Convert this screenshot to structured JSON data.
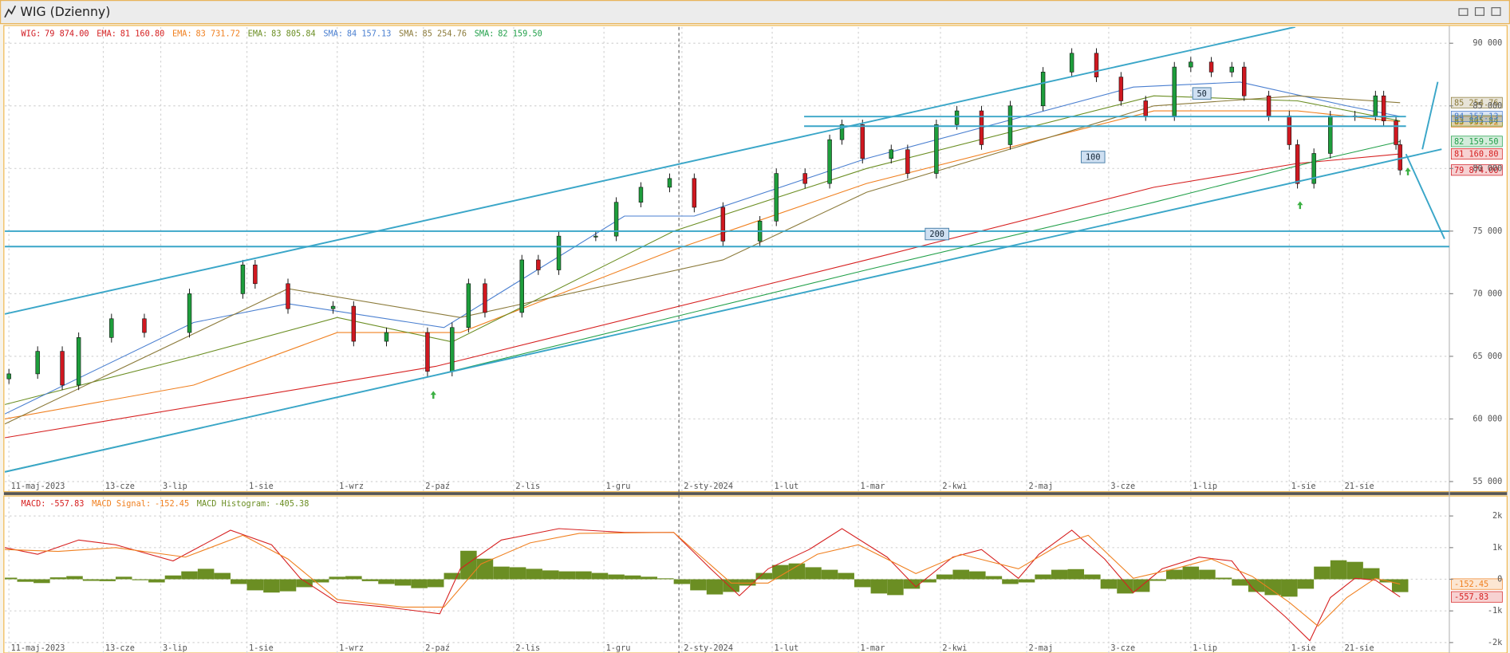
{
  "chart_data": [
    {
      "type": "candlestick",
      "title": "WIG (Dzienny)",
      "name": "WIG:",
      "last_value_label": "79 874.00",
      "up_color": "#1e9e3c",
      "down_color": "#d01820",
      "x": [
        -7,
        0,
        6,
        10,
        18,
        26,
        37,
        50,
        53,
        61,
        72,
        77,
        85,
        95,
        101,
        105,
        109,
        118,
        122,
        127,
        136,
        141,
        147,
        154,
        160,
        167,
        176,
        180,
        187,
        193,
        196,
        201,
        208,
        212,
        219,
        224,
        230,
        237,
        245,
        252,
        258,
        264,
        270,
        277,
        281,
        286,
        291,
        294,
        300,
        305,
        307,
        311,
        315,
        321,
        326,
        328,
        331,
        332
      ],
      "open": [
        63200,
        63600,
        65400,
        62700,
        66500,
        68000,
        66900,
        70000,
        72300,
        70800,
        68800,
        69000,
        66200,
        66900,
        63800,
        67300,
        70800,
        68500,
        72700,
        71900,
        74600,
        74600,
        77300,
        78500,
        79200,
        76900,
        74200,
        75800,
        79600,
        78800,
        82300,
        83500,
        80800,
        81500,
        79600,
        83500,
        84600,
        81900,
        85000,
        87700,
        89200,
        87300,
        85400,
        84200,
        88100,
        88500,
        87700,
        88100,
        85800,
        84200,
        81900,
        78800,
        81200,
        84200,
        84200,
        85800,
        83800,
        81900
      ],
      "high": [
        64000,
        65800,
        65800,
        66900,
        68400,
        68400,
        70400,
        72700,
        72700,
        71200,
        69400,
        69400,
        67300,
        67300,
        67700,
        71200,
        71200,
        73100,
        73100,
        75000,
        75000,
        77700,
        78900,
        79600,
        79600,
        77300,
        76200,
        80000,
        80000,
        82700,
        83900,
        83900,
        81900,
        81900,
        83900,
        85000,
        85000,
        85400,
        88100,
        89600,
        89600,
        87700,
        85800,
        88500,
        88900,
        88900,
        88500,
        88500,
        86200,
        84600,
        82300,
        81600,
        84600,
        84600,
        86200,
        86200,
        84200,
        82300
      ],
      "low": [
        62800,
        63200,
        62300,
        62300,
        66100,
        66500,
        66500,
        69600,
        70400,
        68400,
        68400,
        65800,
        65800,
        63400,
        63400,
        66900,
        68100,
        68100,
        71500,
        71500,
        74200,
        74200,
        76900,
        78100,
        76500,
        73800,
        73800,
        75400,
        78400,
        78400,
        81900,
        80400,
        80400,
        79200,
        79200,
        83100,
        81500,
        81500,
        84600,
        87300,
        86900,
        85000,
        83800,
        83800,
        87700,
        87300,
        87300,
        85400,
        83800,
        81500,
        78400,
        78400,
        80800,
        83800,
        83800,
        83400,
        81500,
        79474
      ],
      "close": [
        63600,
        65400,
        62700,
        66500,
        68000,
        66900,
        70000,
        72300,
        70800,
        68800,
        69000,
        66200,
        66900,
        63800,
        67300,
        70800,
        68500,
        72700,
        71900,
        74600,
        74600,
        77300,
        78500,
        79200,
        76900,
        74200,
        75800,
        79600,
        78800,
        82300,
        83500,
        80800,
        81500,
        79600,
        83500,
        84600,
        81900,
        85000,
        87700,
        89200,
        87300,
        85400,
        84200,
        88100,
        88500,
        87700,
        88100,
        85800,
        84200,
        81900,
        78800,
        81200,
        84200,
        84200,
        85800,
        83800,
        81900,
        79874
      ],
      "overlays": [
        {
          "name": "EMA:",
          "color": "#d62020",
          "last_value_label": "81 160.80",
          "x": [
            -8,
            97,
            202,
            272,
            307,
            332
          ],
          "values": [
            58500,
            64200,
            72700,
            78500,
            80400,
            81160.8
          ]
        },
        {
          "name": "EMA:",
          "color": "#f08020",
          "last_value_label": "83 731.72",
          "x": [
            -8,
            38,
            73,
            103,
            155,
            202,
            272,
            307,
            332
          ],
          "values": [
            60000,
            62700,
            66900,
            66900,
            73500,
            78800,
            84600,
            84600,
            83731.72
          ]
        },
        {
          "name": "EMA:",
          "color": "#6b8e23",
          "last_value_label": "83 805.84",
          "x": [
            -8,
            38,
            73,
            101,
            155,
            202,
            272,
            307,
            332
          ],
          "values": [
            61150,
            65000,
            68100,
            66150,
            75000,
            80000,
            85800,
            85400,
            83805.84
          ]
        },
        {
          "name": "SMA:",
          "color": "#4a7fd0",
          "last_value_label": "84 157.13",
          "x": [
            -8,
            38,
            61,
            99,
            143,
            160,
            202,
            267,
            293,
            319,
            332
          ],
          "values": [
            60400,
            67700,
            69200,
            67300,
            76200,
            76200,
            80800,
            86500,
            86900,
            85000,
            84157.13
          ]
        },
        {
          "name": "SMA:",
          "color": "#8b7a3a",
          "last_value_label": "85 254.76",
          "x": [
            -8,
            61,
            103,
            167,
            202,
            272,
            307,
            332
          ],
          "values": [
            59600,
            70400,
            68100,
            72700,
            78100,
            85000,
            85800,
            85254.76
          ]
        },
        {
          "name": "SMA:",
          "color": "#22a04a",
          "last_value_label": "82 159.50",
          "x": [
            -8,
            97,
            202,
            272,
            314,
            332
          ],
          "values": [
            55800,
            63500,
            71900,
            77300,
            80800,
            82159.5
          ]
        }
      ],
      "annotations": [
        "50",
        "100",
        "200"
      ],
      "xlim": [
        -8,
        344
      ],
      "xticks": [
        {
          "value": -7,
          "label": "11-maj-2023"
        },
        {
          "value": 16,
          "label": "13-cze"
        },
        {
          "value": 30,
          "label": "3-lip"
        },
        {
          "value": 51,
          "label": "1-sie"
        },
        {
          "value": 73,
          "label": "1-wrz"
        },
        {
          "value": 94,
          "label": "2-paź"
        },
        {
          "value": 116,
          "label": "2-lis"
        },
        {
          "value": 138,
          "label": "1-gru"
        },
        {
          "value": 157,
          "label": "2-sty-2024"
        },
        {
          "value": 179,
          "label": "1-lut"
        },
        {
          "value": 200,
          "label": "1-mar"
        },
        {
          "value": 220,
          "label": "2-kwi"
        },
        {
          "value": 241,
          "label": "2-maj"
        },
        {
          "value": 261,
          "label": "3-cze"
        },
        {
          "value": 281,
          "label": "1-lip"
        },
        {
          "value": 305,
          "label": "1-sie"
        },
        {
          "value": 318,
          "label": "21-sie"
        }
      ],
      "ylim": [
        54230,
        91300
      ],
      "yticks": [
        {
          "value": 55000,
          "label": "55 000"
        },
        {
          "value": 60000,
          "label": "60 000"
        },
        {
          "value": 65000,
          "label": "65 000"
        },
        {
          "value": 70000,
          "label": "70 000"
        },
        {
          "value": 75000,
          "label": "75 000"
        },
        {
          "value": 80000,
          "label": "80 000"
        },
        {
          "value": 85000,
          "label": "85 000"
        },
        {
          "value": 90000,
          "label": "90 000"
        }
      ],
      "grid": true
    },
    {
      "type": "macd",
      "series": [
        {
          "name": "MACD:",
          "color": "#d62020",
          "last_value_label": "-557.83",
          "x": [
            -8,
            0,
            10,
            19,
            33,
            47,
            57,
            64,
            73,
            85,
            98,
            103,
            113,
            127,
            143,
            155,
            164,
            171,
            178,
            188,
            196,
            207,
            214,
            223,
            230,
            239,
            244,
            252,
            260,
            267,
            274,
            283,
            291,
            296,
            304,
            310,
            315,
            321,
            326,
            332
          ],
          "values": [
            1000,
            790,
            1240,
            1090,
            580,
            1550,
            1090,
            30,
            -730,
            -880,
            -1090,
            330,
            1240,
            1600,
            1480,
            1480,
            330,
            -520,
            330,
            940,
            1600,
            700,
            -240,
            700,
            940,
            30,
            790,
            1550,
            640,
            -420,
            330,
            700,
            580,
            -270,
            -1180,
            -1940,
            -580,
            30,
            -30,
            -557.83
          ]
        },
        {
          "name": "MACD Signal:",
          "color": "#f08020",
          "last_value_label": "-152.45",
          "x": [
            -8,
            5,
            19,
            36,
            50,
            61,
            73,
            89,
            99,
            108,
            120,
            132,
            155,
            169,
            178,
            190,
            200,
            214,
            225,
            239,
            249,
            256,
            267,
            277,
            286,
            296,
            305,
            312,
            319,
            326,
            332
          ],
          "values": [
            940,
            880,
            1000,
            700,
            1390,
            640,
            -640,
            -880,
            -880,
            480,
            1150,
            1450,
            1480,
            -120,
            -120,
            790,
            1090,
            180,
            790,
            330,
            1090,
            1390,
            30,
            330,
            640,
            90,
            -730,
            -1480,
            -580,
            30,
            -152.45
          ]
        }
      ],
      "histogram": {
        "name": "MACD Histogram:",
        "color": "#6b8e23",
        "last_value_label": "-405.38",
        "x": [
          -7,
          -3,
          1,
          5,
          9,
          13,
          17,
          21,
          25,
          29,
          33,
          37,
          41,
          45,
          49,
          53,
          57,
          61,
          65,
          69,
          73,
          77,
          81,
          85,
          89,
          93,
          97,
          101,
          105,
          109,
          113,
          117,
          121,
          125,
          129,
          133,
          137,
          141,
          145,
          149,
          153,
          157,
          161,
          165,
          169,
          173,
          177,
          181,
          185,
          189,
          193,
          197,
          201,
          205,
          209,
          213,
          217,
          221,
          225,
          229,
          233,
          237,
          241,
          245,
          249,
          253,
          257,
          261,
          265,
          269,
          273,
          277,
          281,
          285,
          289,
          293,
          297,
          301,
          305,
          309,
          313,
          317,
          321,
          325,
          329,
          332
        ],
        "values": [
          50,
          -80,
          -120,
          60,
          100,
          -50,
          -60,
          80,
          -30,
          -100,
          120,
          250,
          330,
          200,
          -150,
          -350,
          -420,
          -380,
          -250,
          -100,
          80,
          100,
          -60,
          -150,
          -200,
          -280,
          -250,
          200,
          900,
          650,
          400,
          380,
          330,
          280,
          250,
          250,
          200,
          150,
          120,
          80,
          30,
          -150,
          -350,
          -480,
          -400,
          -200,
          200,
          450,
          500,
          380,
          300,
          200,
          -250,
          -450,
          -500,
          -300,
          -100,
          150,
          300,
          250,
          100,
          -150,
          -100,
          150,
          300,
          320,
          150,
          -300,
          -450,
          -400,
          -50,
          300,
          400,
          300,
          50,
          -200,
          -400,
          -500,
          -550,
          -300,
          400,
          600,
          550,
          350,
          -100,
          -405.38
        ]
      },
      "xlim": [
        -8,
        344
      ],
      "xticks": [
        {
          "value": -7,
          "label": "11-maj-2023"
        },
        {
          "value": 16,
          "label": "13-cze"
        },
        {
          "value": 30,
          "label": "3-lip"
        },
        {
          "value": 51,
          "label": "1-sie"
        },
        {
          "value": 73,
          "label": "1-wrz"
        },
        {
          "value": 94,
          "label": "2-paź"
        },
        {
          "value": 116,
          "label": "2-lis"
        },
        {
          "value": 138,
          "label": "1-gru"
        },
        {
          "value": 157,
          "label": "2-sty-2024"
        },
        {
          "value": 179,
          "label": "1-lut"
        },
        {
          "value": 200,
          "label": "1-mar"
        },
        {
          "value": 220,
          "label": "2-kwi"
        },
        {
          "value": 241,
          "label": "2-maj"
        },
        {
          "value": 261,
          "label": "3-cze"
        },
        {
          "value": 281,
          "label": "1-lip"
        },
        {
          "value": 305,
          "label": "1-sie"
        },
        {
          "value": 318,
          "label": "21-sie"
        }
      ],
      "ylim": [
        -2330,
        2600
      ],
      "yticks": [
        {
          "value": 2000,
          "label": "2k"
        },
        {
          "value": 1000,
          "label": "1k"
        },
        0,
        {
          "value": -1000,
          "label": "-1k"
        },
        {
          "value": -2000,
          "label": "-2k"
        }
      ],
      "grid": true
    }
  ]
}
